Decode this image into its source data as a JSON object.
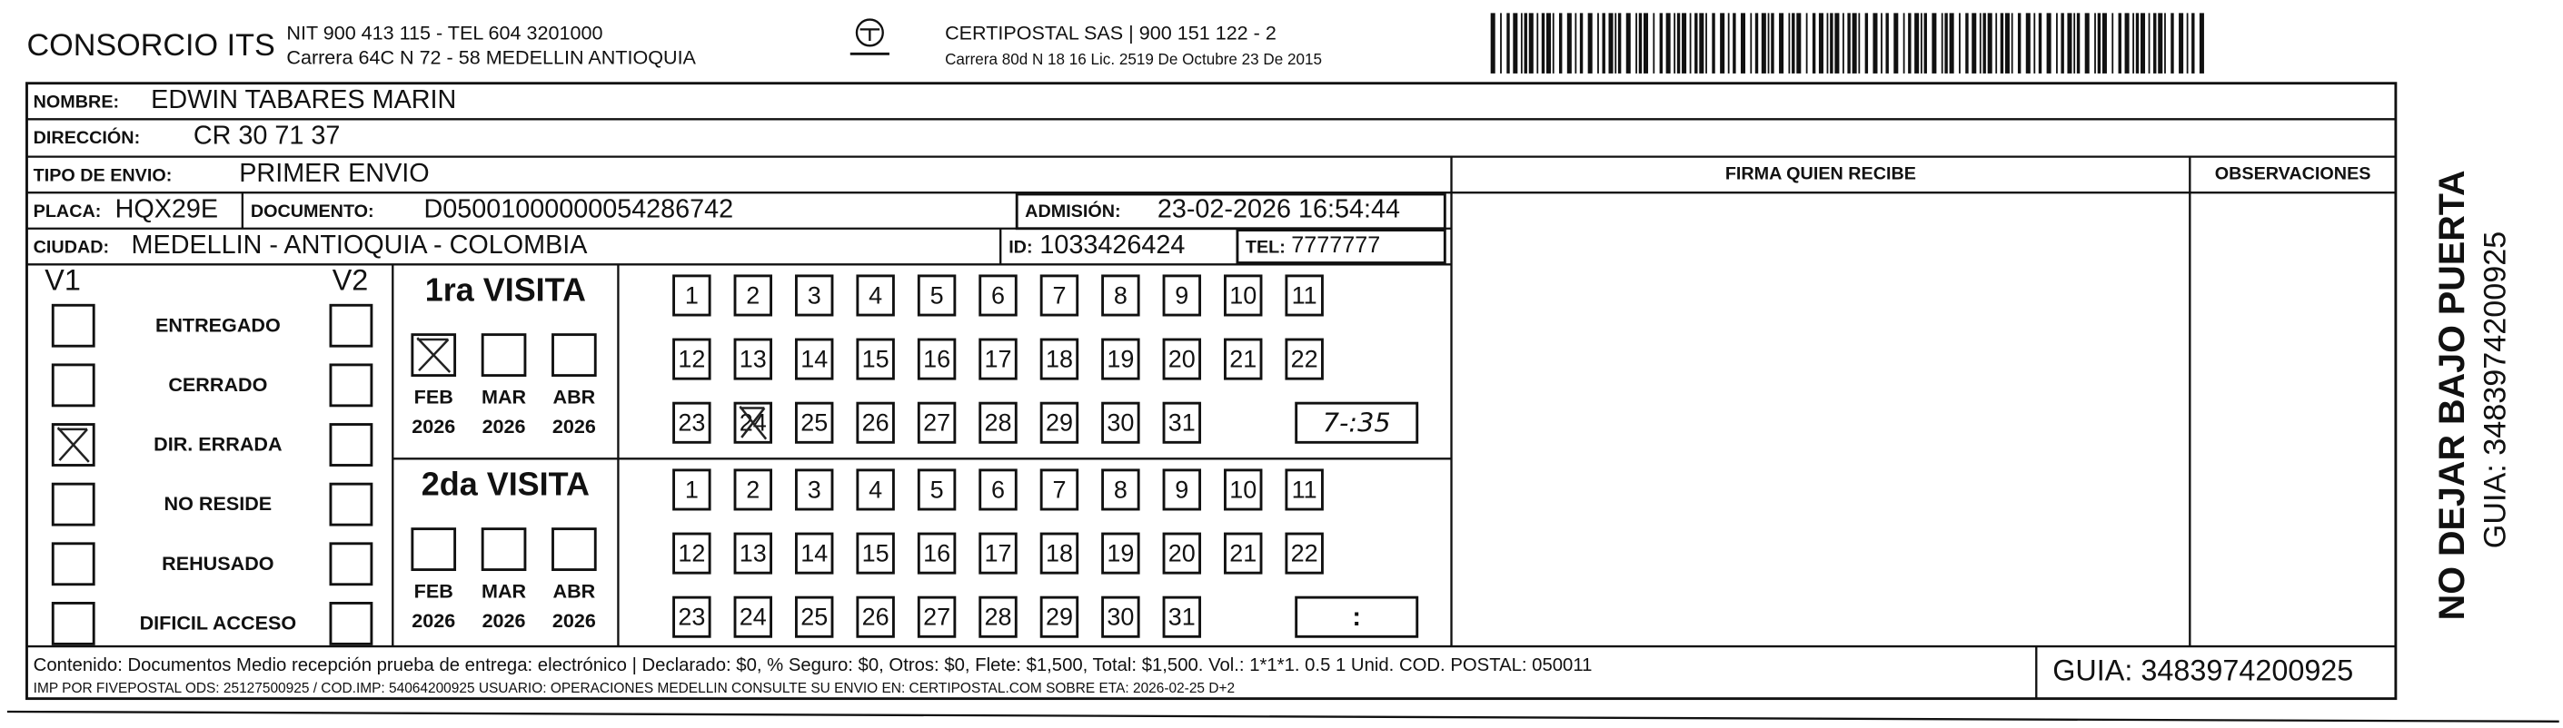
{
  "header": {
    "company": "CONSORCIO ITS",
    "nit": "NIT 900 413 115 - TEL 604 3201000",
    "address": "Carrera 64C N 72 - 58 MEDELLIN ANTIOQUIA",
    "carrier": "CERTIPOSTAL SAS | 900 151 122 - 2",
    "carrier_address": "Carrera 80d N 18 16 Lic. 2519 De Octubre 23 De 2015"
  },
  "fields": {
    "name": {
      "label": "NOMBRE:",
      "value": "EDWIN TABARES MARIN"
    },
    "address": {
      "label": "DIRECCIÓN:",
      "value": "CR 30 71 37"
    },
    "shipment_type": {
      "label": "TIPO DE ENVIO:",
      "value": "PRIMER ENVIO"
    },
    "plate": {
      "label": "PLACA:",
      "value": "HQX29E"
    },
    "document": {
      "label": "DOCUMENTO:",
      "value": "D05001000000054286742"
    },
    "admission": {
      "label": "ADMISIÓN:",
      "value": "23-02-2026 16:54:44"
    },
    "city": {
      "label": "CIUDAD:",
      "value": "MEDELLIN - ANTIOQUIA - COLOMBIA"
    },
    "id": {
      "label": "ID:",
      "value": "1033426424"
    },
    "phone": {
      "label": "TEL:",
      "value": "7777777"
    }
  },
  "columns": {
    "signature": "FIRMA QUIEN RECIBE",
    "observations": "OBSERVACIONES"
  },
  "status": {
    "v1": "V1",
    "v2": "V2",
    "options": [
      {
        "label": "ENTREGADO",
        "v1_marked": false
      },
      {
        "label": "CERRADO",
        "v1_marked": false
      },
      {
        "label": "DIR. ERRADA",
        "v1_marked": true
      },
      {
        "label": "NO RESIDE",
        "v1_marked": false
      },
      {
        "label": "REHUSADO",
        "v1_marked": false
      },
      {
        "label": "DIFICIL ACCESO",
        "v1_marked": false
      }
    ]
  },
  "calendar": {
    "days": [
      1,
      2,
      3,
      4,
      5,
      6,
      7,
      8,
      9,
      10,
      11,
      12,
      13,
      14,
      15,
      16,
      17,
      18,
      19,
      20,
      21,
      22,
      23,
      24,
      25,
      26,
      27,
      28,
      29,
      30,
      31
    ],
    "months": [
      {
        "month": "FEB",
        "year": 2026
      },
      {
        "month": "MAR",
        "year": 2026
      },
      {
        "month": "ABR",
        "year": 2026
      }
    ]
  },
  "visits": [
    {
      "title": "1ra VISITA",
      "months_marked": [
        true,
        false,
        false
      ],
      "days_marked": [
        false,
        false,
        false,
        false,
        false,
        false,
        false,
        false,
        false,
        false,
        false,
        false,
        false,
        false,
        false,
        false,
        false,
        false,
        false,
        false,
        false,
        false,
        false,
        true,
        false,
        false,
        false,
        false,
        false,
        false,
        false
      ],
      "time": "7-:35"
    },
    {
      "title": "2da VISITA",
      "months_marked": [
        false,
        false,
        false
      ],
      "days_marked": [
        false,
        false,
        false,
        false,
        false,
        false,
        false,
        false,
        false,
        false,
        false,
        false,
        false,
        false,
        false,
        false,
        false,
        false,
        false,
        false,
        false,
        false,
        false,
        false,
        false,
        false,
        false,
        false,
        false,
        false,
        false
      ],
      "time": ":"
    }
  ],
  "side": {
    "warning": "NO DEJAR BAJO PUERTA",
    "guide": "GUIA: 3483974200925"
  },
  "footer": {
    "content": "Contenido: Documentos Medio recepción prueba de entrega: electrónico | Declarado: $0, % Seguro: $0, Otros: $0, Flete: $1,500, Total: $1,500. Vol.: 1*1*1. 0.5 1 Unid. COD. POSTAL: 050011",
    "print": "IMP POR FIVEPOSTAL ODS: 25127500925 / COD.IMP: 54064200925 USUARIO: OPERACIONES MEDELLIN CONSULTE SU ENVIO EN: CERTIPOSTAL.COM SOBRE ETA: 2026-02-25 D+2",
    "guide": "GUIA: 3483974200925"
  }
}
